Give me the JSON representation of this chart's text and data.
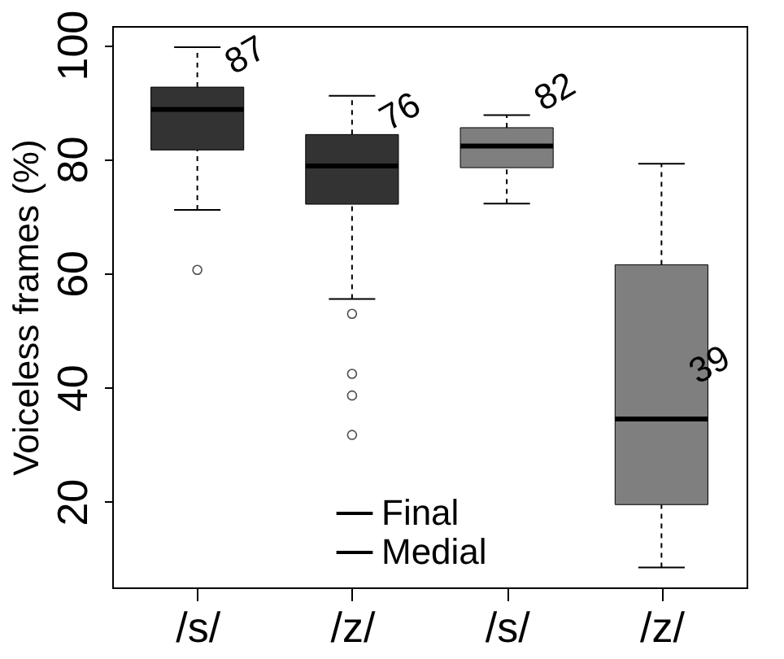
{
  "chart_data": {
    "type": "box",
    "ylabel": "Voiceless frames (%)",
    "categories": [
      "/s/",
      "/z/",
      "/s/",
      "/z/"
    ],
    "series": [
      {
        "name": "Final",
        "color": "#333333",
        "boxes": [
          {
            "low": 71.1,
            "q1": 81.6,
            "median": 88.7,
            "q3": 92.6,
            "high": 99.6,
            "outliers": [
              60.6
            ]
          },
          {
            "low": 55.5,
            "q1": 72.1,
            "median": 78.8,
            "q3": 84.3,
            "high": 91.1,
            "outliers": [
              52.9,
              42.4,
              38.6,
              31.7
            ]
          },
          null,
          null
        ]
      },
      {
        "name": "Medial",
        "color": "#7f7f7f",
        "boxes": [
          null,
          null,
          {
            "low": 72.2,
            "q1": 78.5,
            "median": 82.3,
            "q3": 85.5,
            "high": 87.7
          },
          {
            "low": 8.5,
            "q1": 19.5,
            "median": 34.5,
            "q3": 61.5,
            "high": 79.2
          }
        ]
      }
    ],
    "annotations": [
      "87",
      "76",
      "82",
      "39"
    ],
    "ylim": [
      5,
      103.3
    ],
    "yticks": [
      20,
      40,
      60,
      80,
      100
    ],
    "grid": false,
    "legend": "bottom"
  }
}
